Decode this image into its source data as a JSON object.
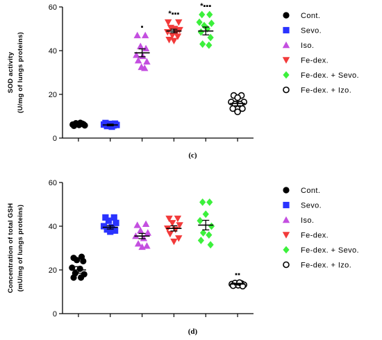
{
  "chart_data": [
    {
      "type": "scatter",
      "panel_caption": "(c)",
      "ylabel_line1": "SOD activity",
      "ylabel_line2": "(U/mg of lungs proteins)",
      "ylim": [
        0,
        60
      ],
      "yticks": [
        "0",
        "20",
        "40",
        "60"
      ],
      "grid": false,
      "legend_position": "right",
      "groups": [
        {
          "name": "Cont.",
          "color": "#000000",
          "marker": "circle",
          "mean": 6.5,
          "sem": 0.4,
          "sig": "",
          "points": [
            [
              -0.18,
              6.2
            ],
            [
              -0.08,
              6.8
            ],
            [
              0.02,
              6.0
            ],
            [
              0.12,
              6.6
            ],
            [
              0.2,
              5.8
            ],
            [
              -0.14,
              5.6
            ],
            [
              0.06,
              7.0
            ],
            [
              0.16,
              6.3
            ]
          ]
        },
        {
          "name": "Sevo.",
          "color": "#2a33ff",
          "marker": "square",
          "mean": 6.0,
          "sem": 0.4,
          "sig": "",
          "points": [
            [
              -0.2,
              6.2
            ],
            [
              -0.1,
              5.5
            ],
            [
              0.0,
              6.5
            ],
            [
              0.1,
              5.8
            ],
            [
              0.2,
              6.0
            ],
            [
              -0.15,
              6.9
            ],
            [
              0.05,
              5.2
            ],
            [
              0.15,
              6.6
            ]
          ]
        },
        {
          "name": "Iso.",
          "color": "#c44fe0",
          "marker": "triangle-up",
          "mean": 39.0,
          "sem": 1.8,
          "sig": "▪",
          "points": [
            [
              -0.15,
              47.0
            ],
            [
              0.1,
              47.0
            ],
            [
              -0.05,
              42.0
            ],
            [
              0.12,
              41.0
            ],
            [
              -0.18,
              38.0
            ],
            [
              0.02,
              37.5
            ],
            [
              -0.12,
              35.5
            ],
            [
              0.15,
              35.0
            ],
            [
              -0.02,
              32.5
            ],
            [
              0.08,
              32.0
            ]
          ]
        },
        {
          "name": "Fe-dex.",
          "color": "#f23a3a",
          "marker": "triangle-down",
          "mean": 49.0,
          "sem": 0.8,
          "sig": "*▪▪▪",
          "points": [
            [
              -0.18,
              53.0
            ],
            [
              0.15,
              53.0
            ],
            [
              -0.1,
              50.5
            ],
            [
              0.02,
              50.0
            ],
            [
              0.18,
              49.5
            ],
            [
              -0.2,
              48.5
            ],
            [
              0.08,
              48.5
            ],
            [
              -0.05,
              47.0
            ],
            [
              0.12,
              46.5
            ],
            [
              -0.15,
              45.0
            ],
            [
              0.0,
              44.5
            ]
          ]
        },
        {
          "name": "Fe-dex. + Sevo.",
          "color": "#3cf03c",
          "marker": "diamond",
          "mean": 49.0,
          "sem": 1.8,
          "sig": "*▪▪▪",
          "points": [
            [
              -0.12,
              56.5
            ],
            [
              0.12,
              56.5
            ],
            [
              -0.2,
              53.0
            ],
            [
              0.18,
              52.5
            ],
            [
              -0.05,
              51.5
            ],
            [
              0.05,
              50.0
            ],
            [
              -0.15,
              48.5
            ],
            [
              0.15,
              46.0
            ],
            [
              -0.1,
              43.0
            ],
            [
              0.1,
              42.5
            ]
          ]
        },
        {
          "name": "Fe-dex. + Izo.",
          "color": "#000000",
          "marker": "circle-open",
          "mean": 15.8,
          "sem": 1.0,
          "sig": "",
          "points": [
            [
              -0.12,
              19.5
            ],
            [
              0.12,
              19.5
            ],
            [
              0.0,
              18.5
            ],
            [
              -0.2,
              16.5
            ],
            [
              0.2,
              16.5
            ],
            [
              -0.08,
              15.5
            ],
            [
              0.08,
              15.5
            ],
            [
              -0.15,
              13.5
            ],
            [
              0.15,
              13.5
            ],
            [
              0.0,
              12.0
            ]
          ]
        }
      ]
    },
    {
      "type": "scatter",
      "panel_caption": "(d)",
      "ylabel_line1": "Concentration of total GSH",
      "ylabel_line2": "(mU/mg of lungs proteins)",
      "ylim": [
        0,
        60
      ],
      "yticks": [
        "0",
        "20",
        "40",
        "60"
      ],
      "grid": false,
      "legend_position": "right",
      "groups": [
        {
          "name": "Cont.",
          "color": "#000000",
          "marker": "circle",
          "mean": 20.0,
          "sem": 1.5,
          "sig": "",
          "points": [
            [
              -0.15,
              25.5
            ],
            [
              0.1,
              26.0
            ],
            [
              -0.05,
              24.5
            ],
            [
              0.15,
              24.0
            ],
            [
              -0.2,
              21.0
            ],
            [
              0.05,
              20.5
            ],
            [
              -0.1,
              18.5
            ],
            [
              0.18,
              18.0
            ],
            [
              -0.15,
              16.5
            ],
            [
              0.08,
              16.5
            ]
          ]
        },
        {
          "name": "Sevo.",
          "color": "#2a33ff",
          "marker": "square",
          "mean": 39.5,
          "sem": 0.8,
          "sig": "",
          "points": [
            [
              -0.15,
              44.0
            ],
            [
              0.12,
              44.0
            ],
            [
              -0.05,
              42.5
            ],
            [
              0.18,
              41.5
            ],
            [
              -0.2,
              40.0
            ],
            [
              0.05,
              39.5
            ],
            [
              -0.1,
              38.5
            ],
            [
              0.15,
              38.0
            ],
            [
              0.0,
              37.5
            ]
          ]
        },
        {
          "name": "Iso.",
          "color": "#c44fe0",
          "marker": "triangle-up",
          "mean": 35.5,
          "sem": 1.2,
          "sig": "",
          "points": [
            [
              -0.15,
              40.5
            ],
            [
              0.12,
              41.0
            ],
            [
              -0.05,
              38.0
            ],
            [
              0.18,
              37.0
            ],
            [
              -0.2,
              35.5
            ],
            [
              0.05,
              34.5
            ],
            [
              -0.12,
              32.0
            ],
            [
              0.15,
              31.0
            ],
            [
              0.0,
              30.5
            ]
          ]
        },
        {
          "name": "Fe-dex.",
          "color": "#f23a3a",
          "marker": "triangle-down",
          "mean": 39.0,
          "sem": 1.2,
          "sig": "",
          "points": [
            [
              -0.15,
              43.5
            ],
            [
              0.12,
              43.5
            ],
            [
              -0.05,
              41.5
            ],
            [
              0.18,
              40.5
            ],
            [
              -0.2,
              39.0
            ],
            [
              0.05,
              38.5
            ],
            [
              -0.12,
              36.5
            ],
            [
              0.15,
              34.5
            ],
            [
              0.0,
              33.0
            ]
          ]
        },
        {
          "name": "Fe-dex. + Sevo.",
          "color": "#3cf03c",
          "marker": "diamond",
          "mean": 40.5,
          "sem": 2.2,
          "sig": "",
          "points": [
            [
              -0.1,
              51.0
            ],
            [
              0.12,
              51.0
            ],
            [
              0.0,
              45.5
            ],
            [
              -0.18,
              42.5
            ],
            [
              0.18,
              40.0
            ],
            [
              -0.08,
              37.0
            ],
            [
              0.1,
              36.0
            ],
            [
              -0.15,
              33.5
            ],
            [
              0.15,
              31.5
            ]
          ]
        },
        {
          "name": "Fe-dex. + Izo.",
          "color": "#000000",
          "marker": "circle-open",
          "mean": 13.5,
          "sem": 0.4,
          "sig": "▪▪",
          "points": [
            [
              -0.18,
              13.5
            ],
            [
              -0.08,
              14.0
            ],
            [
              0.02,
              13.0
            ],
            [
              0.12,
              13.8
            ],
            [
              0.2,
              13.2
            ],
            [
              -0.14,
              12.8
            ],
            [
              0.06,
              14.2
            ],
            [
              0.16,
              12.6
            ]
          ]
        }
      ]
    }
  ]
}
